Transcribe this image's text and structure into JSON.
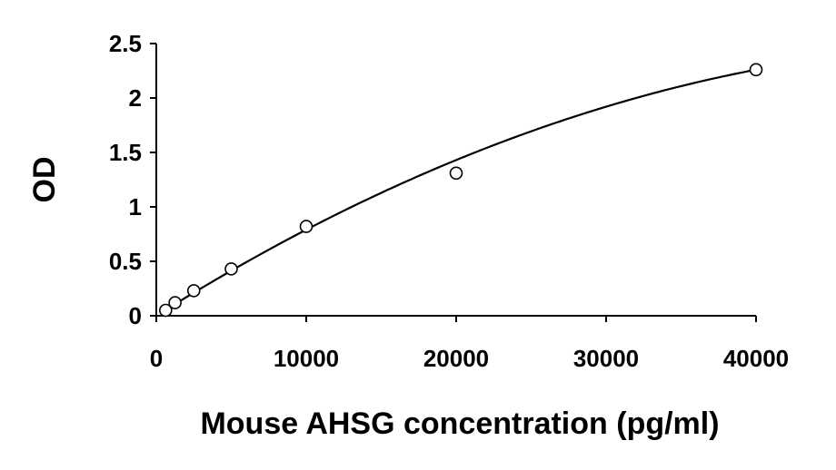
{
  "chart_data": {
    "type": "scatter",
    "xlabel": "Mouse AHSG concentration (pg/ml)",
    "ylabel": "OD",
    "xlim": [
      0,
      40000
    ],
    "ylim": [
      0,
      2.5
    ],
    "x_ticks": [
      0,
      10000,
      20000,
      30000,
      40000
    ],
    "x_tick_labels": [
      "0",
      "10000",
      "20000",
      "30000",
      "40000"
    ],
    "y_ticks": [
      0,
      0.5,
      1,
      1.5,
      2,
      2.5
    ],
    "y_tick_labels": [
      "0",
      "0.5",
      "1",
      "1.5",
      "2",
      "2.5"
    ],
    "grid": false,
    "legend": "none",
    "series": [
      {
        "x": [
          625,
          1250,
          2500,
          5000,
          10000,
          20000,
          40000
        ],
        "y": [
          0.05,
          0.12,
          0.23,
          0.43,
          0.82,
          1.31,
          2.26
        ],
        "marker": "open-circle"
      }
    ],
    "fit": {
      "kind": "polynomial",
      "coefficients": [
        0.0,
        8.65e-05,
        -7.5e-10
      ],
      "x_range": [
        625,
        40000
      ]
    }
  }
}
